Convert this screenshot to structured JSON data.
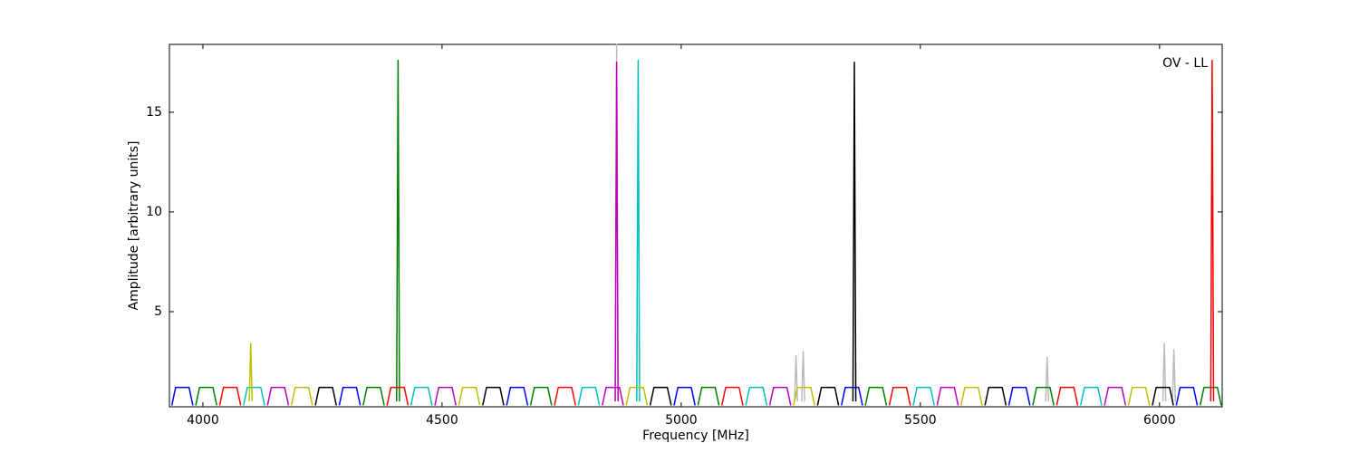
{
  "chart_data": {
    "type": "line",
    "x_label": "Frequency [MHz]",
    "y_label": "Amplitude [arbitrary units]",
    "annotation": "OV - LL",
    "xlim": [
      3930,
      6131
    ],
    "ylim": [
      0.23,
      18.4
    ],
    "xticks": [
      4000,
      4500,
      5000,
      5500,
      6000
    ],
    "yticks": [
      5,
      10,
      15
    ],
    "grid": false,
    "series": [
      {
        "color": "#bbbbbb",
        "x": [
          4862,
          4865,
          4868,
          null,
          5237,
          5240,
          5243,
          null,
          5252,
          5255,
          5258,
          null,
          5762,
          5765,
          5768,
          null,
          6007,
          6010,
          6013,
          null,
          6027,
          6030,
          6033
        ],
        "values": [
          0.5,
          18.4,
          0.5,
          null,
          0.5,
          2.8,
          0.5,
          null,
          0.5,
          3.0,
          0.5,
          null,
          0.5,
          2.7,
          0.5,
          null,
          0.5,
          3.4,
          0.5,
          null,
          0.5,
          3.1,
          0.5
        ]
      },
      {
        "color": "#0000ff",
        "x": [
          3935,
          3943,
          3971,
          3979,
          null,
          4285,
          4293,
          4321,
          4329,
          null,
          4635,
          4643,
          4671,
          4679,
          null,
          4985,
          4993,
          5021,
          5029,
          null,
          5335,
          5343,
          5371,
          5379,
          null,
          5685,
          5693,
          5721,
          5729,
          null,
          6035,
          6043,
          6071,
          6079
        ],
        "values": [
          0.3,
          1.2,
          1.2,
          0.3,
          null,
          0.3,
          1.2,
          1.2,
          0.3,
          null,
          0.3,
          1.2,
          1.2,
          0.3,
          null,
          0.3,
          1.2,
          1.2,
          0.3,
          null,
          0.3,
          1.2,
          1.2,
          0.3,
          null,
          0.3,
          1.2,
          1.2,
          0.3,
          null,
          0.3,
          1.2,
          1.2,
          0.3
        ]
      },
      {
        "color": "#008000",
        "x": [
          3985,
          3993,
          4021,
          4029,
          null,
          4335,
          4343,
          4371,
          4379,
          null,
          4405,
          4408,
          4411,
          null,
          4685,
          4693,
          4721,
          4729,
          null,
          5035,
          5043,
          5071,
          5079,
          null,
          5385,
          5393,
          5421,
          5429,
          null,
          5735,
          5743,
          5771,
          5779,
          null,
          6085,
          6093,
          6121,
          6129
        ],
        "values": [
          0.3,
          1.2,
          1.2,
          0.3,
          null,
          0.3,
          1.2,
          1.2,
          0.3,
          null,
          0.5,
          17.6,
          0.5,
          null,
          0.3,
          1.2,
          1.2,
          0.3,
          null,
          0.3,
          1.2,
          1.2,
          0.3,
          null,
          0.3,
          1.2,
          1.2,
          0.3,
          null,
          0.3,
          1.2,
          1.2,
          0.3,
          null,
          0.3,
          1.2,
          1.2,
          0.3
        ]
      },
      {
        "color": "#ff0000",
        "x": [
          4035,
          4043,
          4071,
          4079,
          null,
          4385,
          4393,
          4421,
          4429,
          null,
          4735,
          4743,
          4771,
          4779,
          null,
          5085,
          5093,
          5121,
          5129,
          null,
          5435,
          5443,
          5471,
          5479,
          null,
          5785,
          5793,
          5821,
          5829,
          null,
          6107,
          6110,
          6113
        ],
        "values": [
          0.3,
          1.2,
          1.2,
          0.3,
          null,
          0.3,
          1.2,
          1.2,
          0.3,
          null,
          0.3,
          1.2,
          1.2,
          0.3,
          null,
          0.3,
          1.2,
          1.2,
          0.3,
          null,
          0.3,
          1.2,
          1.2,
          0.3,
          null,
          0.3,
          1.2,
          1.2,
          0.3,
          null,
          0.5,
          17.6,
          0.5
        ]
      },
      {
        "color": "#00bfbf",
        "x": [
          4085,
          4093,
          4121,
          4129,
          null,
          4435,
          4443,
          4471,
          4479,
          null,
          4785,
          4793,
          4821,
          4829,
          null,
          4907,
          4910,
          4913,
          null,
          5135,
          5143,
          5171,
          5179,
          null,
          5485,
          5493,
          5521,
          5529,
          null,
          5835,
          5843,
          5871,
          5879
        ],
        "values": [
          0.3,
          1.2,
          1.2,
          0.3,
          null,
          0.3,
          1.2,
          1.2,
          0.3,
          null,
          0.3,
          1.2,
          1.2,
          0.3,
          null,
          0.5,
          17.6,
          0.5,
          null,
          0.3,
          1.2,
          1.2,
          0.3,
          null,
          0.3,
          1.2,
          1.2,
          0.3,
          null,
          0.3,
          1.2,
          1.2,
          0.3
        ]
      },
      {
        "color": "#bf00bf",
        "x": [
          4135,
          4143,
          4171,
          4179,
          null,
          4485,
          4493,
          4521,
          4529,
          null,
          4835,
          4843,
          4871,
          4879,
          null,
          4862,
          4865,
          4868,
          null,
          5185,
          5193,
          5221,
          5229,
          null,
          5535,
          5543,
          5571,
          5579,
          null,
          5885,
          5893,
          5921,
          5929
        ],
        "values": [
          0.3,
          1.2,
          1.2,
          0.3,
          null,
          0.3,
          1.2,
          1.2,
          0.3,
          null,
          0.3,
          1.2,
          1.2,
          0.3,
          null,
          0.5,
          17.5,
          0.5,
          null,
          0.3,
          1.2,
          1.2,
          0.3,
          null,
          0.3,
          1.2,
          1.2,
          0.3,
          null,
          0.3,
          1.2,
          1.2,
          0.3
        ]
      },
      {
        "color": "#bfbf00",
        "x": [
          4097,
          4100,
          4103,
          null,
          4185,
          4193,
          4221,
          4229,
          null,
          4535,
          4543,
          4571,
          4579,
          null,
          4885,
          4893,
          4921,
          4929,
          null,
          5235,
          5243,
          5271,
          5279,
          null,
          5585,
          5593,
          5621,
          5629,
          null,
          5935,
          5943,
          5971,
          5979
        ],
        "values": [
          0.5,
          3.4,
          0.5,
          null,
          0.3,
          1.2,
          1.2,
          0.3,
          null,
          0.3,
          1.2,
          1.2,
          0.3,
          null,
          0.3,
          1.2,
          1.2,
          0.3,
          null,
          0.3,
          1.2,
          1.2,
          0.3,
          null,
          0.3,
          1.2,
          1.2,
          0.3,
          null,
          0.3,
          1.2,
          1.2,
          0.3
        ]
      },
      {
        "color": "#000000",
        "x": [
          4235,
          4243,
          4271,
          4279,
          null,
          4585,
          4593,
          4621,
          4629,
          null,
          4935,
          4943,
          4971,
          4979,
          null,
          5285,
          5293,
          5321,
          5329,
          null,
          5359,
          5362,
          5365,
          null,
          5635,
          5643,
          5671,
          5679,
          null,
          5985,
          5993,
          6021,
          6029
        ],
        "values": [
          0.3,
          1.2,
          1.2,
          0.3,
          null,
          0.3,
          1.2,
          1.2,
          0.3,
          null,
          0.3,
          1.2,
          1.2,
          0.3,
          null,
          0.3,
          1.2,
          1.2,
          0.3,
          null,
          0.5,
          17.5,
          0.5,
          null,
          0.3,
          1.2,
          1.2,
          0.3,
          null,
          0.3,
          1.2,
          1.2,
          0.3
        ]
      }
    ]
  }
}
